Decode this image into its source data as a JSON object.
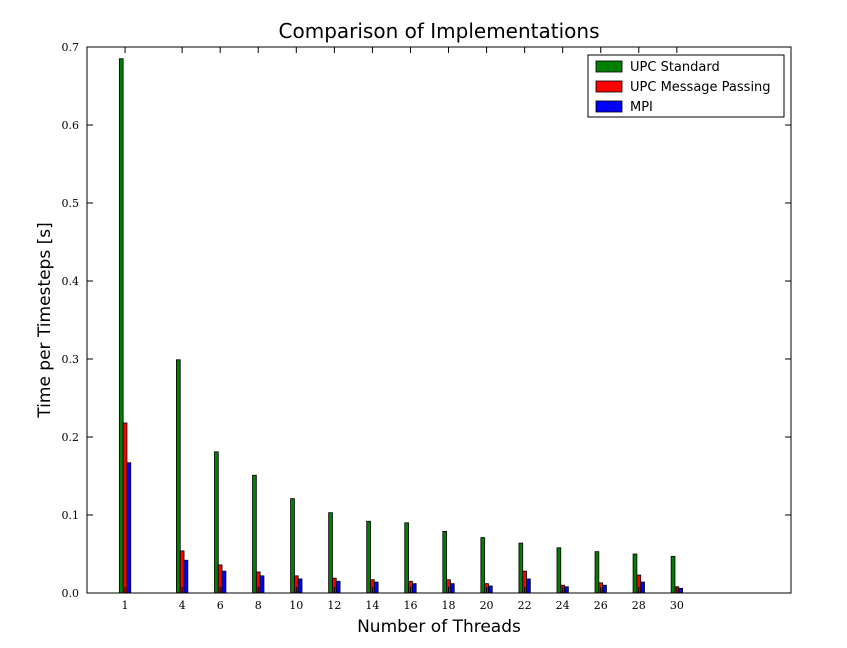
{
  "chart_data": {
    "type": "bar",
    "title": "Comparison of Implementations",
    "xlabel": "Number of Threads",
    "ylabel": "Time per Timesteps [s]",
    "ylim": [
      0,
      0.7
    ],
    "yticks": [
      "0.0",
      "0.1",
      "0.2",
      "0.3",
      "0.4",
      "0.5",
      "0.6",
      "0.7"
    ],
    "xlim": [
      -1,
      36
    ],
    "x": [
      1,
      4,
      6,
      8,
      10,
      12,
      14,
      16,
      18,
      20,
      22,
      24,
      26,
      28,
      30
    ],
    "xtick_labels": [
      "1",
      "4",
      "6",
      "8",
      "10",
      "12",
      "14",
      "16",
      "18",
      "20",
      "22",
      "24",
      "26",
      "28",
      "30"
    ],
    "legend_position": "top-right",
    "grid": false,
    "series": [
      {
        "name": "UPC Standard",
        "color": "#007f00",
        "values": [
          0.685,
          0.299,
          0.181,
          0.151,
          0.121,
          0.103,
          0.092,
          0.09,
          0.079,
          0.071,
          0.064,
          0.058,
          0.053,
          0.05,
          0.047
        ]
      },
      {
        "name": "UPC Message Passing",
        "color": "#ff0000",
        "values": [
          0.218,
          0.054,
          0.036,
          0.027,
          0.022,
          0.019,
          0.017,
          0.015,
          0.017,
          0.012,
          0.028,
          0.01,
          0.013,
          0.023,
          0.008
        ]
      },
      {
        "name": "MPI",
        "color": "#0000ff",
        "values": [
          0.167,
          0.042,
          0.028,
          0.022,
          0.018,
          0.015,
          0.014,
          0.012,
          0.012,
          0.009,
          0.018,
          0.008,
          0.01,
          0.014,
          0.006
        ]
      }
    ]
  }
}
